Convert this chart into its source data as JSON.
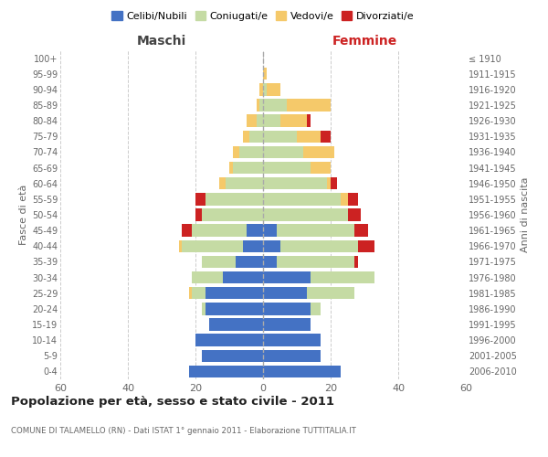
{
  "age_groups": [
    "0-4",
    "5-9",
    "10-14",
    "15-19",
    "20-24",
    "25-29",
    "30-34",
    "35-39",
    "40-44",
    "45-49",
    "50-54",
    "55-59",
    "60-64",
    "65-69",
    "70-74",
    "75-79",
    "80-84",
    "85-89",
    "90-94",
    "95-99",
    "100+"
  ],
  "birth_years": [
    "2006-2010",
    "2001-2005",
    "1996-2000",
    "1991-1995",
    "1986-1990",
    "1981-1985",
    "1976-1980",
    "1971-1975",
    "1966-1970",
    "1961-1965",
    "1956-1960",
    "1951-1955",
    "1946-1950",
    "1941-1945",
    "1936-1940",
    "1931-1935",
    "1926-1930",
    "1921-1925",
    "1916-1920",
    "1911-1915",
    "≤ 1910"
  ],
  "males": {
    "celibi": [
      22,
      18,
      20,
      16,
      17,
      17,
      12,
      8,
      6,
      5,
      0,
      0,
      0,
      0,
      0,
      0,
      0,
      0,
      0,
      0,
      0
    ],
    "coniugati": [
      0,
      0,
      0,
      0,
      1,
      4,
      9,
      10,
      18,
      16,
      18,
      17,
      11,
      9,
      7,
      4,
      2,
      1,
      0,
      0,
      0
    ],
    "vedovi": [
      0,
      0,
      0,
      0,
      0,
      1,
      0,
      0,
      1,
      0,
      0,
      0,
      2,
      1,
      2,
      2,
      3,
      1,
      1,
      0,
      0
    ],
    "divorziati": [
      0,
      0,
      0,
      0,
      0,
      0,
      0,
      0,
      0,
      3,
      2,
      3,
      0,
      0,
      0,
      0,
      0,
      0,
      0,
      0,
      0
    ]
  },
  "females": {
    "nubili": [
      23,
      17,
      17,
      14,
      14,
      13,
      14,
      4,
      5,
      4,
      0,
      0,
      0,
      0,
      0,
      0,
      0,
      0,
      0,
      0,
      0
    ],
    "coniugate": [
      0,
      0,
      0,
      0,
      3,
      14,
      19,
      23,
      23,
      23,
      25,
      23,
      19,
      14,
      12,
      10,
      5,
      7,
      1,
      0,
      0
    ],
    "vedove": [
      0,
      0,
      0,
      0,
      0,
      0,
      0,
      0,
      0,
      0,
      0,
      2,
      1,
      6,
      9,
      7,
      8,
      13,
      4,
      1,
      0
    ],
    "divorziate": [
      0,
      0,
      0,
      0,
      0,
      0,
      0,
      1,
      5,
      4,
      4,
      3,
      2,
      0,
      0,
      3,
      1,
      0,
      0,
      0,
      0
    ]
  },
  "colors": {
    "celibi": "#4472c4",
    "coniugati": "#c5dba4",
    "vedovi": "#f5c96a",
    "divorziati": "#cc2222"
  },
  "title": "Popolazione per età, sesso e stato civile - 2011",
  "subtitle": "COMUNE DI TALAMELLO (RN) - Dati ISTAT 1° gennaio 2011 - Elaborazione TUTTITALIA.IT",
  "xlabel_left": "Maschi",
  "xlabel_right": "Femmine",
  "ylabel_left": "Fasce di età",
  "ylabel_right": "Anni di nascita",
  "xlim": 60,
  "legend_labels": [
    "Celibi/Nubili",
    "Coniugati/e",
    "Vedovi/e",
    "Divorziati/e"
  ],
  "background_color": "#ffffff",
  "grid_color": "#cccccc"
}
